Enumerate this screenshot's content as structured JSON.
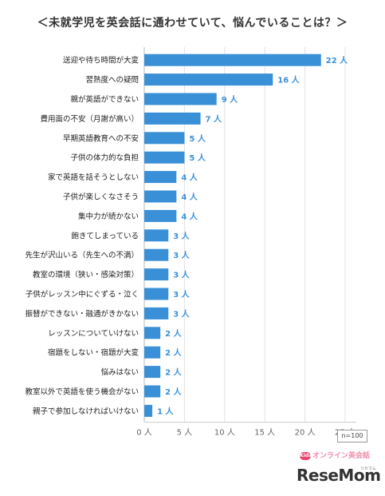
{
  "header": {
    "title": "＜未就学児を英会話に通わせていて、悩んでいることは？＞"
  },
  "chart_data": {
    "type": "bar",
    "orientation": "horizontal",
    "title": "＜未就学児を英会話に通わせていて、悩んでいることは？＞",
    "categories": [
      "送迎や待ち時間が大変",
      "習熟度への疑問",
      "親が英語ができない",
      "費用面の不安（月謝が高い）",
      "早期英語教育への不安",
      "子供の体力的な負担",
      "家で英語を話そうとしない",
      "子供が楽しくなさそう",
      "集中力が続かない",
      "飽きてしまっている",
      "先生が沢山いる（先生への不満）",
      "教室の環境（狭い・感染対策）",
      "子供がレッスン中にぐずる・泣く",
      "振替ができない・融通がきかない",
      "レッスンについていけない",
      "宿題をしない・宿題が大変",
      "悩みはない",
      "教室以外で英語を使う機会がない",
      "親子で参加しなければいけない"
    ],
    "values": [
      22,
      16,
      9,
      7,
      5,
      5,
      4,
      4,
      4,
      3,
      3,
      3,
      3,
      3,
      2,
      2,
      2,
      2,
      1
    ],
    "value_suffix": "人",
    "xlim": [
      0,
      25
    ],
    "xticks": [
      0,
      5,
      10,
      15,
      20,
      25
    ],
    "xtick_labels": [
      "0 人",
      "5 人",
      "10 人",
      "15 人",
      "20 人",
      "25 人"
    ],
    "bar_color": "#3a90d6",
    "grid": true,
    "note": "n=100"
  },
  "branding": {
    "mark": "Kids",
    "site_small": "オンライン英会話",
    "site_main": "ReseMom",
    "site_tag": "リセマム"
  }
}
